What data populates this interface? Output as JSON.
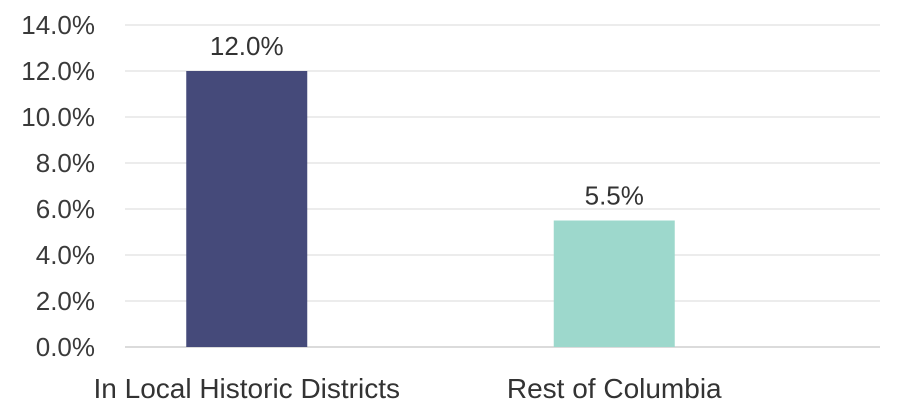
{
  "chart_data": {
    "type": "bar",
    "title": "",
    "xlabel": "",
    "ylabel": "",
    "categories": [
      "In Local Historic Districts",
      "Rest of Columbia"
    ],
    "values": [
      12.0,
      5.5
    ],
    "data_labels": [
      "12.0%",
      "5.5%"
    ],
    "bar_colors": [
      "#454a7a",
      "#9dd8cc"
    ],
    "ylim": [
      0,
      14
    ],
    "y_ticks": [
      0,
      2,
      4,
      6,
      8,
      10,
      12,
      14
    ],
    "y_tick_labels": [
      "0.0%",
      "2.0%",
      "4.0%",
      "6.0%",
      "8.0%",
      "10.0%",
      "12.0%",
      "14.0%"
    ],
    "grid": true,
    "legend": "none"
  }
}
